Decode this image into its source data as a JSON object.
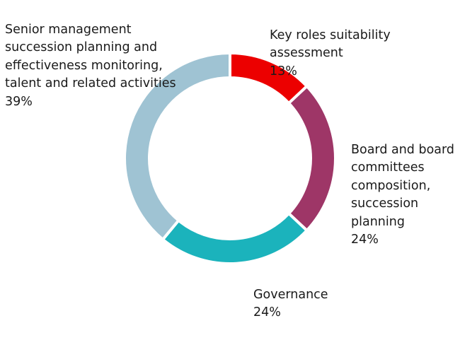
{
  "chart_data": {
    "type": "pie",
    "variant": "donut",
    "title": "",
    "slices": [
      {
        "label": " Key roles suitability\nassessment",
        "value": 13,
        "display": "13%",
        "color": "#EC0000"
      },
      {
        "label": "Board and board\ncommittees\ncomposition,\nsuccession\nplanning",
        "value": 24,
        "display": "24%",
        "color": "#9E3667"
      },
      {
        "label": "Governance",
        "value": 24,
        "display": "24%",
        "color": "#1BB3BC"
      },
      {
        "label": "Senior management\nsuccession planning and\neffectiveness monitoring,\ntalent and related activities",
        "value": 39,
        "display": "39%",
        "color": "#9FC3D3"
      }
    ],
    "start_angle_deg": 0,
    "direction": "clockwise",
    "legend": "none (direct labels)"
  }
}
